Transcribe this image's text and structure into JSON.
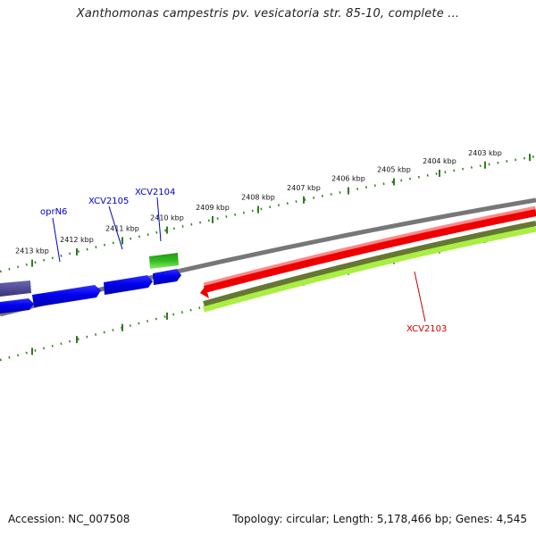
{
  "title": "Xanthomonas campestris pv. vesicatoria str. 85-10, complete ...",
  "footer": {
    "accession": "Accession: NC_007508",
    "summary": "Topology: circular; Length: 5,178,466 bp; Genes: 4,545"
  },
  "ruler": {
    "unit": "kbp",
    "labels": [
      "2403 kbp",
      "2404 kbp",
      "2405 kbp",
      "2406 kbp",
      "2407 kbp",
      "2408 kbp",
      "2409 kbp",
      "2410 kbp",
      "2411 kbp",
      "2412 kbp",
      "2413 kbp"
    ]
  },
  "genes": [
    {
      "name": "oprN6",
      "color": "#0000cc"
    },
    {
      "name": "XCV2105",
      "color": "#0000cc"
    },
    {
      "name": "XCV2104",
      "color": "#0000cc"
    },
    {
      "name": "XCV2103",
      "color": "#cc0000"
    }
  ],
  "colors": {
    "ruler": "#2e7d1e",
    "backbone": "#7a7a7a",
    "forward_blue": "#0000ee",
    "forward_purple": "#4a4595",
    "forward_green": "#33bb22",
    "reverse_red": "#ee0000",
    "reverse_olive": "#667733",
    "reverse_lime": "#aaee44"
  }
}
